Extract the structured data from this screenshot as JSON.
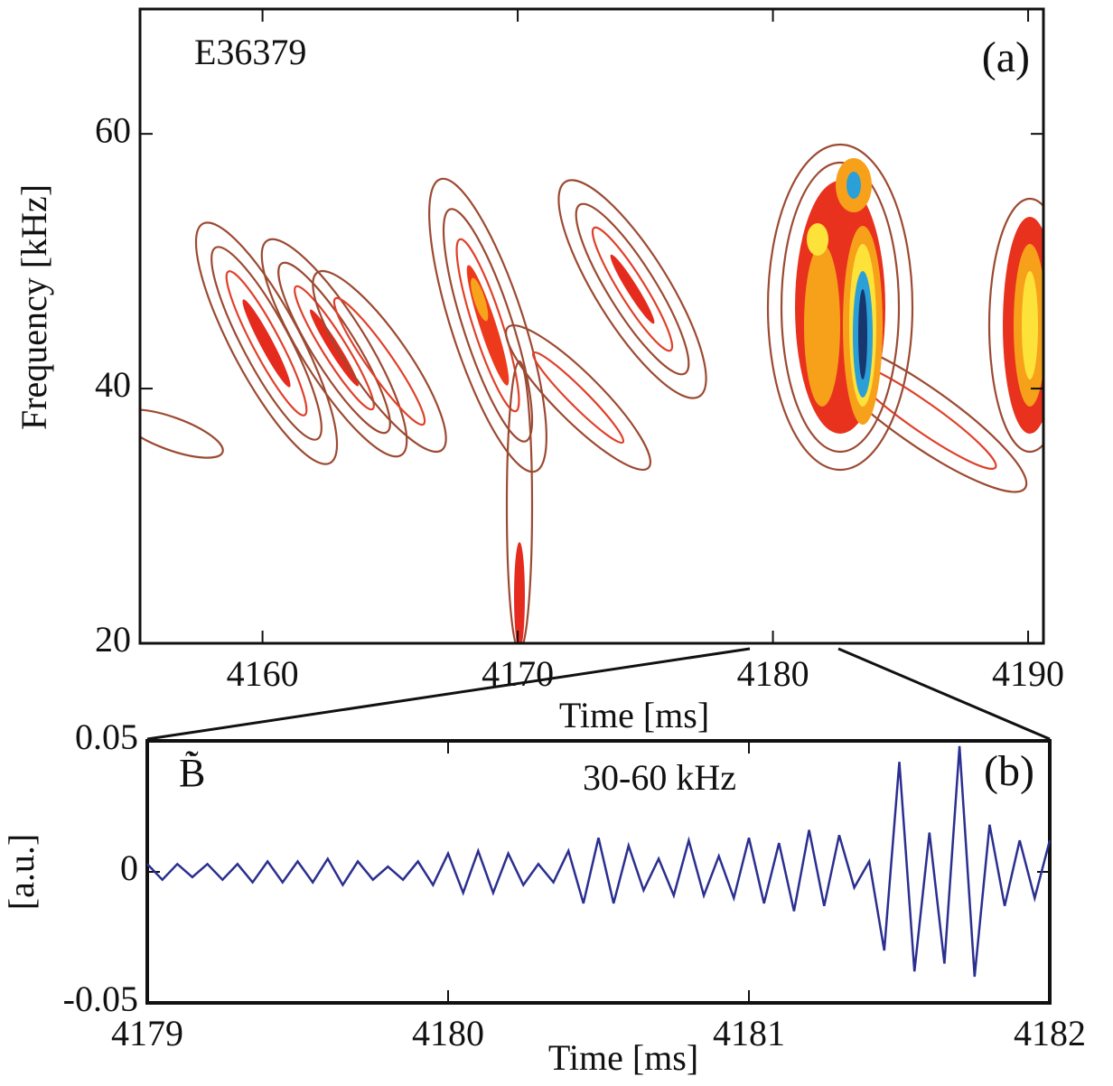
{
  "chart_data": [
    {
      "type": "contour",
      "annotation": "E36379",
      "panel_label": "(a)",
      "x_label": "Time [ms]",
      "y_label": "Frequency [kHz]",
      "xlim": [
        4155.2,
        4190.6
      ],
      "xticks": [
        4160,
        4170,
        4180,
        4190
      ],
      "ylim": [
        20,
        69.8
      ],
      "yticks": [
        20,
        40,
        60
      ]
    },
    {
      "type": "line",
      "signal_label": "B̃̇",
      "annotation": "30-60 kHz",
      "panel_label": "(b)",
      "x_label": "Time [ms]",
      "y_label": "[a.u.]",
      "xlim": [
        4179,
        4182
      ],
      "xticks": [
        4179,
        4180,
        4181,
        4182
      ],
      "ylim": [
        -0.05,
        0.05
      ],
      "yticks": [
        -0.05,
        0,
        0.05
      ],
      "x": [
        4179,
        4179.05,
        4179.1,
        4179.15,
        4179.2,
        4179.25,
        4179.3,
        4179.35,
        4179.4,
        4179.45,
        4179.5,
        4179.55,
        4179.6,
        4179.65,
        4179.7,
        4179.75,
        4179.8,
        4179.85,
        4179.9,
        4179.95,
        4180,
        4180.05,
        4180.1,
        4180.15,
        4180.2,
        4180.25,
        4180.3,
        4180.35,
        4180.4,
        4180.45,
        4180.5,
        4180.55,
        4180.6,
        4180.65,
        4180.7,
        4180.75,
        4180.8,
        4180.85,
        4180.9,
        4180.95,
        4181,
        4181.05,
        4181.1,
        4181.15,
        4181.2,
        4181.25,
        4181.3,
        4181.35,
        4181.4,
        4181.45,
        4181.5,
        4181.55,
        4181.6,
        4181.65,
        4181.7,
        4181.75,
        4181.8,
        4181.85,
        4181.9,
        4181.95,
        4182
      ],
      "series": [
        {
          "color": "#2b2f8f",
          "values": [
            0.003,
            -0.003,
            0.003,
            -0.002,
            0.003,
            -0.003,
            0.003,
            -0.004,
            0.004,
            -0.004,
            0.004,
            -0.004,
            0.005,
            -0.005,
            0.004,
            -0.003,
            0.002,
            -0.003,
            0.004,
            -0.005,
            0.007,
            -0.008,
            0.008,
            -0.008,
            0.007,
            -0.005,
            0.003,
            -0.004,
            0.008,
            -0.012,
            0.013,
            -0.012,
            0.01,
            -0.007,
            0.005,
            -0.009,
            0.012,
            -0.009,
            0.006,
            -0.01,
            0.013,
            -0.012,
            0.011,
            -0.015,
            0.016,
            -0.013,
            0.014,
            -0.006,
            0.004,
            -0.03,
            0.042,
            -0.038,
            0.015,
            -0.035,
            0.048,
            -0.04,
            0.018,
            -0.013,
            0.012,
            -0.01,
            0.012
          ]
        }
      ]
    }
  ]
}
